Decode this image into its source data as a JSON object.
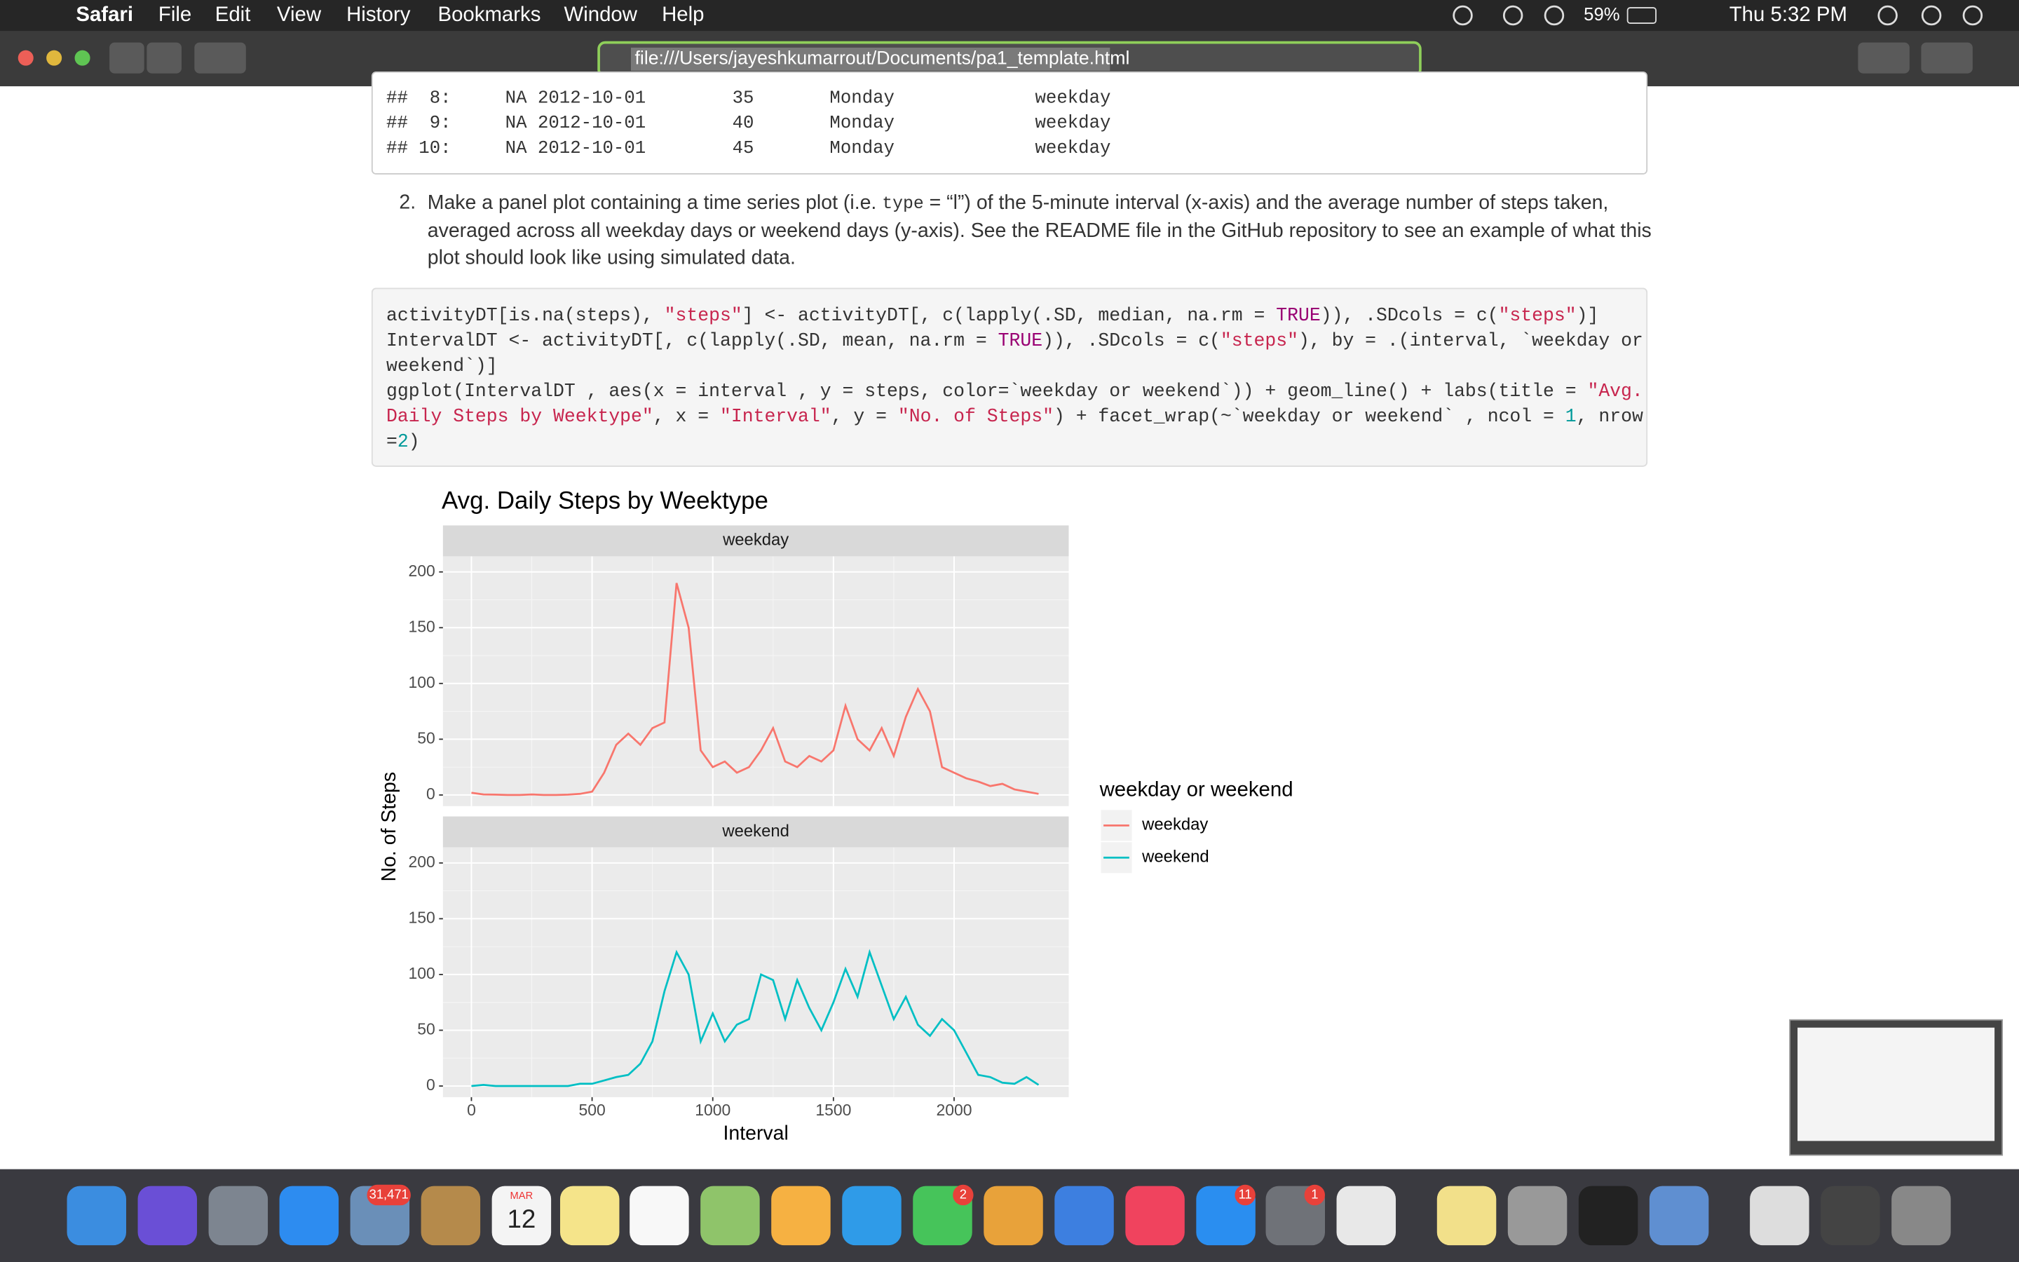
{
  "menu_bar": {
    "app": "Safari",
    "items": [
      "File",
      "Edit",
      "View",
      "History",
      "Bookmarks",
      "Window",
      "Help"
    ],
    "battery": "59%",
    "clock": "Thu 5:32 PM"
  },
  "toolbar": {
    "url": "file:///Users/jayeshkumarrout/Documents/pa1_template.html"
  },
  "document": {
    "output_lines": [
      "##  8:     NA 2012-10-01        35       Monday             weekday",
      "##  9:     NA 2012-10-01        40       Monday             weekday",
      "## 10:     NA 2012-10-01        45       Monday             weekday"
    ],
    "list_item": {
      "number": "2.",
      "line1": [
        "Make a panel plot containing a time series plot (i.e. ",
        "type",
        " = “l”) of the 5-minute interval (x-axis) and the average number of steps taken,"
      ],
      "line2": "averaged across all weekday days or weekend days (y-axis). See the README file in the GitHub repository to see an example of what this",
      "line3": "plot should look like using simulated data."
    },
    "code_lines": [
      [
        {
          "text": "activityDT[is.na(steps), "
        },
        {
          "text": "\"steps\"",
          "color": "#c7254e"
        },
        {
          "text": "] <- activityDT[, c(lapply(.SD, median, na.rm = "
        },
        {
          "text": "TRUE",
          "color": "#990073"
        },
        {
          "text": ")), .SDcols = c("
        },
        {
          "text": "\"steps\"",
          "color": "#c7254e"
        },
        {
          "text": ")]"
        }
      ],
      [
        {
          "text": "IntervalDT <- activityDT[, c(lapply(.SD, mean, na.rm = "
        },
        {
          "text": "TRUE",
          "color": "#990073"
        },
        {
          "text": ")), .SDcols = c("
        },
        {
          "text": "\"steps\"",
          "color": "#c7254e"
        },
        {
          "text": "), by = .(interval, `weekday or"
        }
      ],
      [
        {
          "text": "weekend`)]"
        }
      ],
      [
        {
          "text": "ggplot(IntervalDT , aes(x = interval , y = steps, color=`weekday or weekend`)) + geom_line() + labs(title = "
        },
        {
          "text": "\"Avg.",
          "color": "#c7254e"
        }
      ],
      [
        {
          "text": "Daily Steps by Weektype\"",
          "color": "#c7254e"
        },
        {
          "text": ", x = "
        },
        {
          "text": "\"Interval\"",
          "color": "#c7254e"
        },
        {
          "text": ", y = "
        },
        {
          "text": "\"No. of Steps\"",
          "color": "#c7254e"
        },
        {
          "text": ") + facet_wrap(~`weekday or weekend` , ncol = "
        },
        {
          "text": "1",
          "color": "#009999"
        },
        {
          "text": ", nrow"
        }
      ],
      [
        {
          "text": "="
        },
        {
          "text": "2",
          "color": "#009999"
        },
        {
          "text": ")"
        }
      ]
    ]
  },
  "chart_data": {
    "type": "line",
    "title": "Avg. Daily Steps by Weektype",
    "x_label": "Interval",
    "y_label": "No. of Steps",
    "legend_title": "weekday or weekend",
    "facet": true,
    "grid": true,
    "x": [
      0,
      50,
      100,
      150,
      200,
      250,
      300,
      350,
      400,
      450,
      500,
      550,
      600,
      650,
      700,
      750,
      800,
      850,
      900,
      950,
      1000,
      1050,
      1100,
      1150,
      1200,
      1250,
      1300,
      1350,
      1400,
      1450,
      1500,
      1550,
      1600,
      1650,
      1700,
      1750,
      1800,
      1850,
      1900,
      1950,
      2000,
      2050,
      2100,
      2150,
      2200,
      2250,
      2300,
      2350
    ],
    "series": [
      {
        "name": "weekday",
        "color": "#F8766D",
        "values": [
          2,
          0.5,
          0.3,
          0,
          0,
          0.5,
          0,
          0,
          0.3,
          1,
          3,
          20,
          45,
          55,
          45,
          60,
          65,
          190,
          150,
          40,
          25,
          30,
          20,
          25,
          40,
          60,
          30,
          25,
          35,
          30,
          40,
          80,
          50,
          40,
          60,
          35,
          70,
          95,
          75,
          25,
          20,
          15,
          12,
          8,
          10,
          5,
          3,
          1
        ]
      },
      {
        "name": "weekend",
        "color": "#00BFC4",
        "values": [
          0,
          1,
          0,
          0,
          0,
          0,
          0,
          0,
          0,
          2,
          2,
          5,
          8,
          10,
          20,
          40,
          85,
          120,
          100,
          40,
          65,
          40,
          55,
          60,
          100,
          95,
          60,
          95,
          70,
          50,
          75,
          105,
          80,
          120,
          90,
          60,
          80,
          55,
          45,
          60,
          50,
          30,
          10,
          8,
          3,
          2,
          8,
          1
        ]
      }
    ],
    "xlim": [
      -118,
      2475
    ],
    "xticks": [
      0,
      500,
      1000,
      1500,
      2000
    ],
    "ylim": [
      -10,
      214
    ],
    "yticks": [
      0,
      50,
      100,
      150,
      200
    ]
  },
  "dock": {
    "badges": [
      "31,471",
      "2",
      "11",
      "1"
    ],
    "calendar": {
      "month": "MAR",
      "day": "12"
    }
  }
}
